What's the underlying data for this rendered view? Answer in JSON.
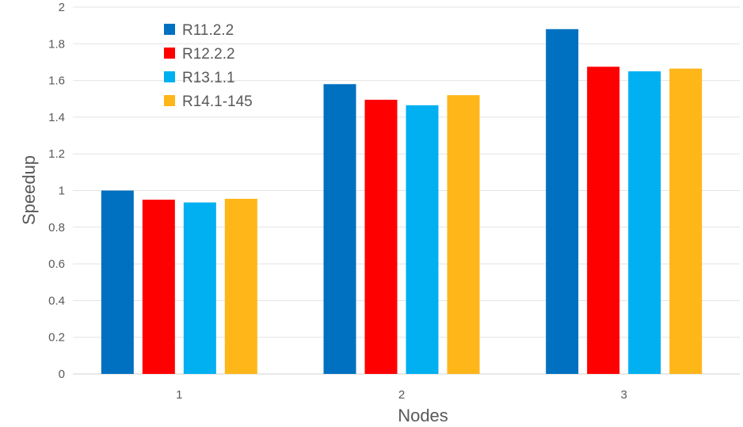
{
  "chart_data": {
    "type": "bar",
    "title": "",
    "xlabel": "Nodes",
    "ylabel": "Speedup",
    "categories": [
      "1",
      "2",
      "3"
    ],
    "ylim": [
      0,
      2
    ],
    "yticks": [
      "0",
      "0.2",
      "0.4",
      "0.6",
      "0.8",
      "1",
      "1.2",
      "1.4",
      "1.6",
      "1.8",
      "2"
    ],
    "grid": true,
    "legend_position": "top-left",
    "series": [
      {
        "name": "R11.2.2",
        "color": "#0070C0",
        "values": [
          1.0,
          1.58,
          1.88
        ]
      },
      {
        "name": "R12.2.2",
        "color": "#FF0000",
        "values": [
          0.95,
          1.495,
          1.675
        ]
      },
      {
        "name": "R13.1.1",
        "color": "#00B0F0",
        "values": [
          0.935,
          1.465,
          1.65
        ]
      },
      {
        "name": "R14.1-145",
        "color": "#FFB619",
        "values": [
          0.955,
          1.52,
          1.665
        ]
      }
    ]
  }
}
